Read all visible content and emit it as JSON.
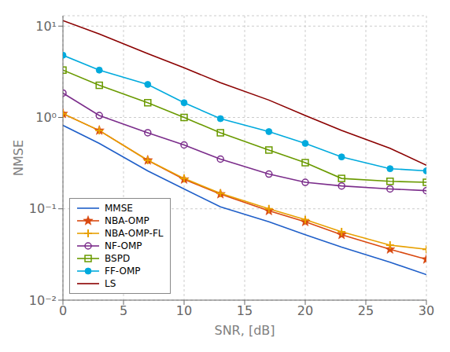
{
  "chart_data": {
    "type": "line",
    "log": "y",
    "xlabel": "SNR, [dB]",
    "ylabel": "NMSE",
    "x": [
      0,
      3,
      7,
      10,
      13,
      17,
      20,
      23,
      27,
      30
    ],
    "series": [
      {
        "name": "MMSE",
        "color": "#1f5fc9",
        "marker": "none",
        "values": [
          0.82,
          0.52,
          0.26,
          0.165,
          0.105,
          0.072,
          0.052,
          0.038,
          0.026,
          0.019
        ]
      },
      {
        "name": "NBA-OMP",
        "color": "#d9480f",
        "marker": "star",
        "values": [
          1.1,
          0.72,
          0.34,
          0.21,
          0.145,
          0.095,
          0.072,
          0.052,
          0.036,
          0.028
        ]
      },
      {
        "name": "NBA-OMP-FL",
        "color": "#e8a000",
        "marker": "plus",
        "values": [
          1.1,
          0.72,
          0.34,
          0.215,
          0.148,
          0.1,
          0.076,
          0.056,
          0.04,
          0.036
        ]
      },
      {
        "name": "NF-OMP",
        "color": "#7b2d8b",
        "marker": "circle-open",
        "values": [
          1.85,
          1.05,
          0.68,
          0.5,
          0.35,
          0.24,
          0.195,
          0.178,
          0.165,
          0.158
        ]
      },
      {
        "name": "BSPD",
        "color": "#6a9a00",
        "marker": "square-open",
        "values": [
          3.3,
          2.25,
          1.45,
          1.0,
          0.68,
          0.44,
          0.32,
          0.215,
          0.2,
          0.195
        ]
      },
      {
        "name": "FF-OMP",
        "color": "#00aadd",
        "marker": "circle",
        "values": [
          4.8,
          3.3,
          2.3,
          1.45,
          0.97,
          0.7,
          0.52,
          0.37,
          0.275,
          0.26
        ]
      },
      {
        "name": "LS",
        "color": "#8b0000",
        "marker": "none",
        "values": [
          11.5,
          8.2,
          5.0,
          3.5,
          2.4,
          1.55,
          1.05,
          0.72,
          0.46,
          0.3
        ]
      }
    ],
    "xlim": [
      0,
      30
    ],
    "xticks": [
      0,
      5,
      10,
      15,
      20,
      25,
      30
    ],
    "ylim": [
      0.01,
      13.0
    ],
    "yticks": [
      {
        "value": 0.01,
        "label": "10⁻²"
      },
      {
        "value": 0.1,
        "label": "10⁻¹"
      },
      {
        "value": 1,
        "label": "10⁰"
      },
      {
        "value": 10,
        "label": "10¹"
      }
    ],
    "grid": true,
    "legend": "lower left"
  }
}
